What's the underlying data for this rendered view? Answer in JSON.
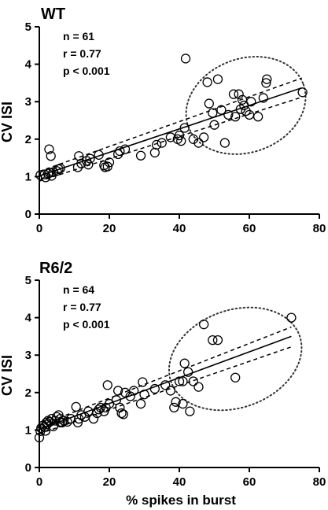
{
  "chart_data": [
    {
      "type": "scatter",
      "title": "WT",
      "xlabel": "",
      "ylabel": "CV ISI",
      "xlim": [
        0,
        80
      ],
      "ylim": [
        0,
        5
      ],
      "xticks": [
        "0",
        "20",
        "40",
        "60",
        "80"
      ],
      "yticks": [
        "0",
        "1",
        "2",
        "3",
        "4",
        "5"
      ],
      "stats": {
        "n": "n =  61",
        "r": "r = 0.77",
        "p": "p < 0.001"
      },
      "fit": {
        "x": [
          0,
          75
        ],
        "y": [
          1.02,
          3.37
        ]
      },
      "ci_upper": {
        "x": [
          0,
          75
        ],
        "y": [
          1.14,
          3.63
        ]
      },
      "ci_lower": {
        "x": [
          0,
          75
        ],
        "y": [
          0.88,
          3.12
        ]
      },
      "ellipse": {
        "cx": 59,
        "cy": 2.9,
        "rx": 17.5,
        "ry": 1.25,
        "angle_deg": -20
      },
      "points": [
        [
          0.3,
          1.04
        ],
        [
          1.5,
          1.06
        ],
        [
          2.5,
          1.08
        ],
        [
          1.8,
          0.98
        ],
        [
          3.0,
          1.1
        ],
        [
          3.5,
          1.02
        ],
        [
          4.0,
          1.12
        ],
        [
          2.8,
          1.73
        ],
        [
          3.3,
          1.55
        ],
        [
          5.0,
          1.15
        ],
        [
          5.5,
          1.2
        ],
        [
          6.0,
          1.22
        ],
        [
          11.0,
          1.25
        ],
        [
          11.3,
          1.55
        ],
        [
          12.0,
          1.35
        ],
        [
          13.5,
          1.42
        ],
        [
          14.0,
          1.32
        ],
        [
          14.5,
          1.48
        ],
        [
          17.0,
          1.58
        ],
        [
          18.5,
          1.3
        ],
        [
          18.8,
          1.25
        ],
        [
          19.5,
          1.27
        ],
        [
          20.0,
          1.38
        ],
        [
          22.5,
          1.6
        ],
        [
          23.0,
          1.68
        ],
        [
          24.5,
          1.73
        ],
        [
          29.0,
          1.56
        ],
        [
          33.0,
          1.64
        ],
        [
          33.5,
          1.85
        ],
        [
          35.0,
          1.9
        ],
        [
          37.5,
          2.05
        ],
        [
          39.5,
          2.0
        ],
        [
          40.0,
          2.1
        ],
        [
          40.5,
          1.95
        ],
        [
          41.5,
          2.3
        ],
        [
          41.8,
          4.15
        ],
        [
          44.0,
          2.0
        ],
        [
          45.5,
          1.9
        ],
        [
          47.0,
          2.05
        ],
        [
          48.0,
          3.52
        ],
        [
          49.5,
          2.7
        ],
        [
          50.0,
          2.38
        ],
        [
          48.5,
          2.95
        ],
        [
          52.0,
          2.78
        ],
        [
          53.0,
          1.9
        ],
        [
          54.0,
          2.65
        ],
        [
          55.5,
          3.2
        ],
        [
          56.0,
          2.6
        ],
        [
          57.0,
          3.2
        ],
        [
          57.5,
          2.8
        ],
        [
          58.0,
          3.05
        ],
        [
          58.5,
          2.9
        ],
        [
          59.0,
          2.75
        ],
        [
          60.0,
          2.65
        ],
        [
          60.5,
          3.0
        ],
        [
          62.5,
          2.6
        ],
        [
          64.0,
          3.1
        ],
        [
          64.8,
          3.5
        ],
        [
          65.0,
          3.6
        ],
        [
          75.2,
          3.25
        ],
        [
          51.0,
          3.6
        ]
      ]
    },
    {
      "type": "scatter",
      "title": "R6/2",
      "xlabel": "% spikes in burst",
      "ylabel": "CV ISI",
      "xlim": [
        0,
        80
      ],
      "ylim": [
        0,
        5
      ],
      "xticks": [
        "0",
        "20",
        "40",
        "60",
        "80"
      ],
      "yticks": [
        "0",
        "1",
        "2",
        "3",
        "4",
        "5"
      ],
      "stats": {
        "n": "n =  64",
        "r": "r = 0.77",
        "p": "p < 0.001"
      },
      "fit": {
        "x": [
          0,
          72
        ],
        "y": [
          1.02,
          3.5
        ]
      },
      "ci_upper": {
        "x": [
          0,
          72
        ],
        "y": [
          1.12,
          3.75
        ]
      },
      "ci_lower": {
        "x": [
          0,
          72
        ],
        "y": [
          0.9,
          3.22
        ]
      },
      "ellipse": {
        "cx": 56,
        "cy": 2.9,
        "rx": 19.5,
        "ry": 1.3,
        "angle_deg": -20
      },
      "points": [
        [
          0.0,
          0.8
        ],
        [
          0.3,
          0.97
        ],
        [
          0.5,
          1.05
        ],
        [
          1.0,
          1.12
        ],
        [
          1.5,
          1.08
        ],
        [
          1.8,
          0.98
        ],
        [
          2.0,
          1.2
        ],
        [
          2.2,
          1.15
        ],
        [
          2.5,
          1.25
        ],
        [
          3.0,
          1.22
        ],
        [
          3.5,
          1.3
        ],
        [
          4.0,
          1.1
        ],
        [
          4.5,
          1.25
        ],
        [
          5.0,
          1.35
        ],
        [
          5.5,
          1.4
        ],
        [
          6.0,
          1.3
        ],
        [
          6.5,
          1.2
        ],
        [
          7.0,
          1.25
        ],
        [
          8.0,
          1.22
        ],
        [
          10.5,
          1.62
        ],
        [
          11.0,
          1.2
        ],
        [
          11.3,
          1.3
        ],
        [
          13.0,
          1.35
        ],
        [
          15.5,
          1.3
        ],
        [
          16.5,
          1.45
        ],
        [
          17.0,
          1.55
        ],
        [
          17.5,
          1.6
        ],
        [
          18.5,
          1.5
        ],
        [
          19.0,
          1.6
        ],
        [
          19.5,
          2.2
        ],
        [
          22.0,
          1.8
        ],
        [
          22.5,
          2.05
        ],
        [
          23.0,
          1.6
        ],
        [
          23.5,
          1.45
        ],
        [
          24.0,
          1.42
        ],
        [
          24.5,
          2.0
        ],
        [
          27.0,
          2.05
        ],
        [
          29.0,
          1.7
        ],
        [
          29.5,
          2.28
        ],
        [
          30.0,
          1.95
        ],
        [
          37.5,
          2.05
        ],
        [
          38.5,
          1.6
        ],
        [
          39.0,
          1.75
        ],
        [
          40.0,
          2.3
        ],
        [
          41.0,
          2.3
        ],
        [
          41.0,
          1.7
        ],
        [
          41.5,
          2.78
        ],
        [
          42.5,
          2.55
        ],
        [
          43.0,
          1.5
        ],
        [
          44.0,
          2.3
        ],
        [
          45.5,
          2.15
        ],
        [
          47.0,
          3.82
        ],
        [
          49.5,
          3.4
        ],
        [
          51.0,
          3.4
        ],
        [
          56.0,
          2.4
        ],
        [
          72.0,
          4.0
        ],
        [
          6.0,
          1.2
        ],
        [
          9.0,
          1.3
        ],
        [
          12.0,
          1.4
        ],
        [
          14.0,
          1.5
        ],
        [
          20.0,
          1.7
        ],
        [
          26.0,
          1.9
        ],
        [
          33.0,
          2.1
        ],
        [
          36.0,
          2.2
        ]
      ]
    }
  ]
}
